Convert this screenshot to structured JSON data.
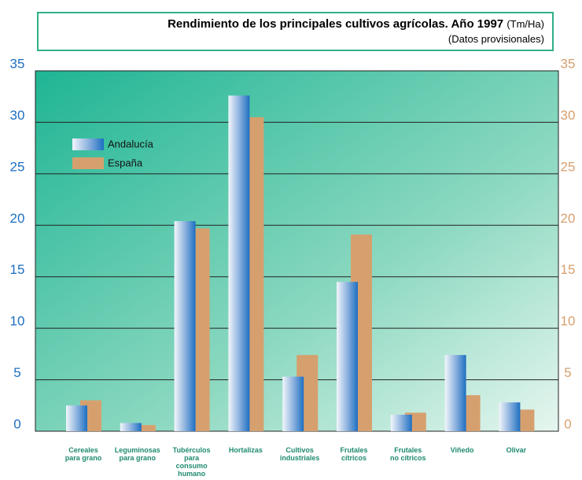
{
  "chart_data": {
    "type": "bar",
    "title": "Rendimiento de los principales cultivos agrícolas. Año 1997",
    "units": "(Tm/Ha)",
    "subtitle": "(Datos provisionales)",
    "categories": [
      "Cereales\npara grano",
      "Leguminosas\npara grano",
      "Tubérculos\npara\nconsumo\nhumano",
      "Hortalizas",
      "Cultivos\nindustriales",
      "Frutales\ncítricos",
      "Frutales\nno cítricos",
      "Viñedo",
      "Olivar"
    ],
    "series": [
      {
        "name": "Andalucía",
        "color": "#1d6fc2",
        "values": [
          2.5,
          0.8,
          20.4,
          32.6,
          5.3,
          14.5,
          1.6,
          7.4,
          2.8
        ]
      },
      {
        "name": "España",
        "color": "#d6a06e",
        "values": [
          3.0,
          0.6,
          19.7,
          30.5,
          7.4,
          19.1,
          1.8,
          3.5,
          2.1
        ]
      }
    ],
    "ylim": [
      0,
      35
    ],
    "yticks": [
      0,
      5,
      10,
      15,
      20,
      25,
      30,
      35
    ],
    "y2lim": [
      0,
      35
    ],
    "y2ticks": [
      0,
      5,
      10,
      15,
      20,
      25,
      30,
      35
    ],
    "grid": true,
    "legend": "upper-left"
  }
}
